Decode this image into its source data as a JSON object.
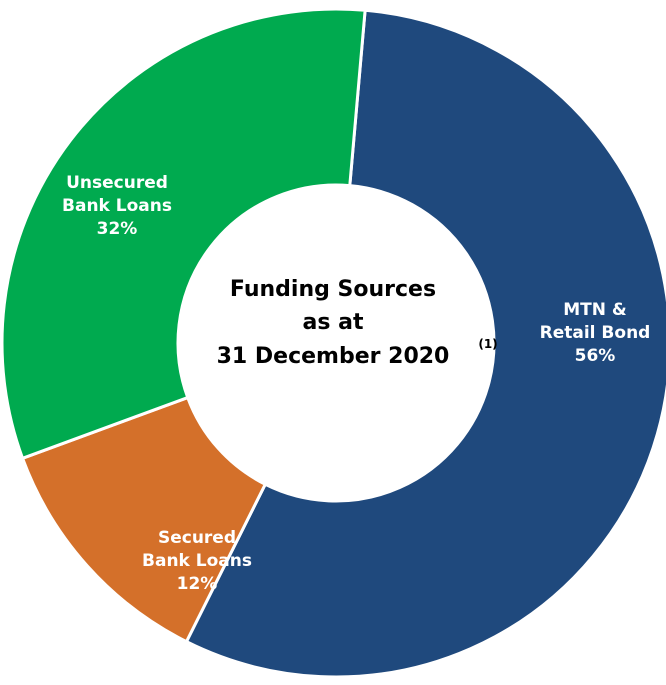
{
  "chart_data": {
    "type": "pie",
    "title_lines": [
      "Funding Sources",
      "as at",
      "31 December 2020"
    ],
    "title_footnote": "(1)",
    "slices": [
      {
        "label_lines": [
          "MTN &",
          "Retail Bond",
          "56%"
        ],
        "value": 56,
        "color": "#1F497D"
      },
      {
        "label_lines": [
          "Secured",
          "Bank Loans",
          "12%"
        ],
        "value": 12,
        "color": "#D4702A"
      },
      {
        "label_lines": [
          "Unsecured",
          "Bank Loans",
          "32%"
        ],
        "value": 32,
        "color": "#00AA4F"
      }
    ],
    "donut": true,
    "slice_border_color": "#ffffff"
  }
}
